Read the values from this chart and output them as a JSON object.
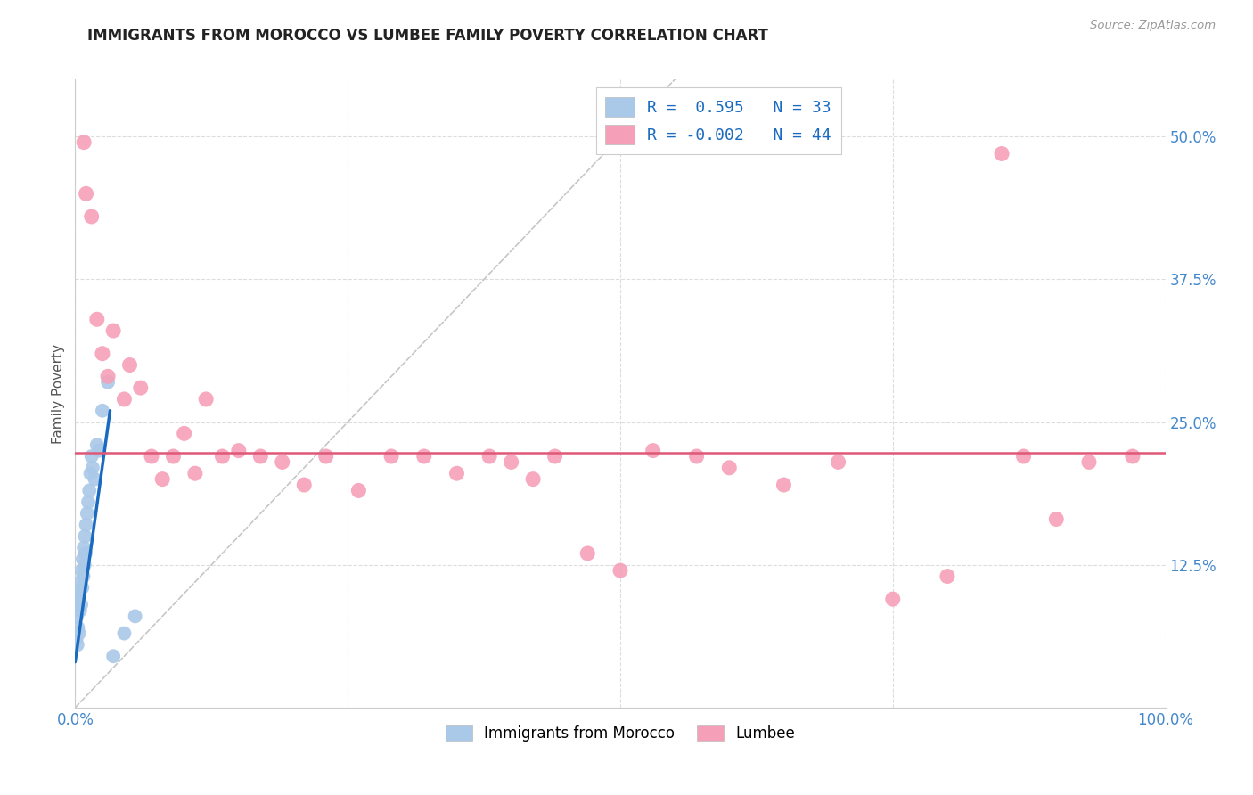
{
  "title": "IMMIGRANTS FROM MOROCCO VS LUMBEE FAMILY POVERTY CORRELATION CHART",
  "source": "Source: ZipAtlas.com",
  "ylabel": "Family Poverty",
  "xlim": [
    0,
    100
  ],
  "ylim": [
    0,
    55
  ],
  "yticks": [
    0,
    12.5,
    25.0,
    37.5,
    50.0
  ],
  "xticks": [
    0,
    25,
    50,
    75,
    100
  ],
  "legend_R_morocco": "R =  0.595",
  "legend_N_morocco": "N = 33",
  "legend_R_lumbee": "R = -0.002",
  "legend_N_lumbee": "N = 44",
  "morocco_color": "#aac8e8",
  "lumbee_color": "#f5a0b8",
  "morocco_trend_color": "#1a6bbf",
  "lumbee_trend_color": "#e05878",
  "ref_line_color": "#c0c0c0",
  "background_color": "#ffffff",
  "grid_color": "#dddddd",
  "title_color": "#222222",
  "axis_label_color": "#555555",
  "tick_label_color": "#4488cc",
  "legend_text_color": "#1a6bbf",
  "morocco_dots_x": [
    0.1,
    0.15,
    0.2,
    0.25,
    0.3,
    0.35,
    0.4,
    0.45,
    0.5,
    0.55,
    0.6,
    0.65,
    0.7,
    0.75,
    0.8,
    0.85,
    0.9,
    0.95,
    1.0,
    1.1,
    1.2,
    1.3,
    1.4,
    1.5,
    1.6,
    1.8,
    2.0,
    2.2,
    2.5,
    3.0,
    3.5,
    4.5,
    5.5
  ],
  "morocco_dots_y": [
    6.0,
    8.0,
    5.5,
    7.0,
    9.5,
    6.5,
    10.0,
    8.5,
    11.0,
    9.0,
    12.0,
    10.5,
    13.0,
    11.5,
    14.0,
    12.5,
    15.0,
    13.5,
    16.0,
    17.0,
    18.0,
    19.0,
    20.5,
    22.0,
    21.0,
    20.0,
    23.0,
    22.5,
    26.0,
    28.5,
    4.5,
    6.5,
    8.0
  ],
  "lumbee_dots_x": [
    0.8,
    1.0,
    1.5,
    2.0,
    2.5,
    3.0,
    3.5,
    4.5,
    5.0,
    6.0,
    7.0,
    8.0,
    9.0,
    10.0,
    11.0,
    12.0,
    13.5,
    15.0,
    17.0,
    19.0,
    21.0,
    23.0,
    26.0,
    29.0,
    32.0,
    35.0,
    38.0,
    40.0,
    42.0,
    44.0,
    47.0,
    50.0,
    53.0,
    57.0,
    60.0,
    65.0,
    70.0,
    75.0,
    80.0,
    85.0,
    87.0,
    90.0,
    93.0,
    97.0
  ],
  "lumbee_dots_y": [
    49.5,
    45.0,
    43.0,
    34.0,
    31.0,
    29.0,
    33.0,
    27.0,
    30.0,
    28.0,
    22.0,
    20.0,
    22.0,
    24.0,
    20.5,
    27.0,
    22.0,
    22.5,
    22.0,
    21.5,
    19.5,
    22.0,
    19.0,
    22.0,
    22.0,
    20.5,
    22.0,
    21.5,
    20.0,
    22.0,
    13.5,
    12.0,
    22.5,
    22.0,
    21.0,
    19.5,
    21.5,
    9.5,
    11.5,
    48.5,
    22.0,
    16.5,
    21.5,
    22.0
  ],
  "morocco_trend_x": [
    0.0,
    3.2
  ],
  "morocco_trend_y": [
    4.0,
    26.0
  ],
  "lumbee_trend_y": 22.3
}
